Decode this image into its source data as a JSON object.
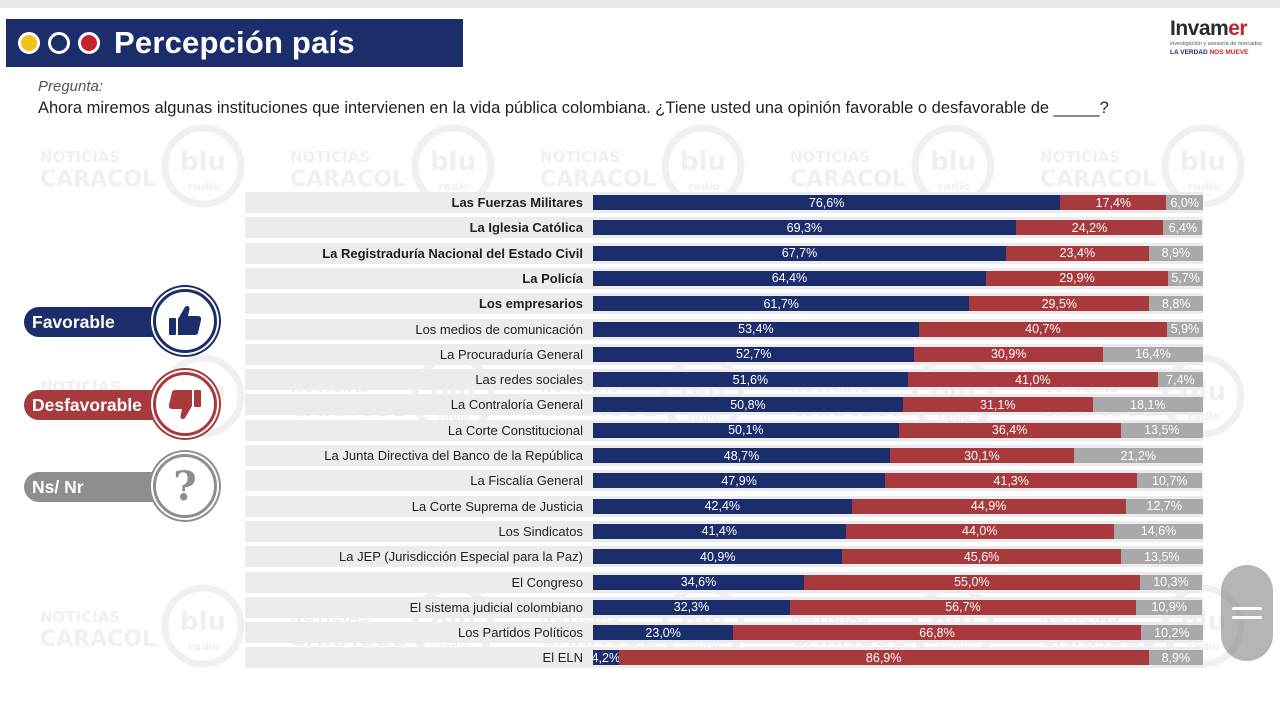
{
  "header": {
    "title": "Percepción país",
    "logo_word_a": "Invam",
    "logo_word_b": "er",
    "logo_sub": "investigación y asesoría de mercados",
    "logo_tag_a": "LA VERDAD ",
    "logo_tag_b": "NOS MUEVE"
  },
  "question": {
    "label": "Pregunta:",
    "text": "Ahora miremos algunas instituciones que intervienen en la vida pública colombiana. ¿Tiene usted una opinión favorable o desfavorable de _____?"
  },
  "watermark": {
    "line1": "NOTICIAS",
    "line2": "CARACOL",
    "blu": "blu",
    "radio": "radio"
  },
  "legend": {
    "favorable": "Favorable",
    "desfavorable": "Desfavorable",
    "nsnr": "Ns/ Nr",
    "nsnr_glyph": "?"
  },
  "colors": {
    "favorable": "#1b2e6b",
    "desfavorable": "#a8393c",
    "nsnr": "#a9a9ab"
  },
  "chart_data": {
    "type": "bar",
    "stacked": true,
    "orientation": "horizontal",
    "title": "Percepción país",
    "categories": [
      "Las Fuerzas Militares",
      "La Iglesia Católica",
      "La Registraduría Nacional del Estado Civil",
      "La Policía",
      "Los empresarios",
      "Los medios de comunicación",
      "La Procuraduría General",
      "Las redes sociales",
      "La Contraloría General",
      "La Corte Constitucional",
      "La Junta Directiva del Banco de la República",
      "La Fiscalía General",
      "La Corte Suprema de Justicia",
      "Los Sindicatos",
      "La JEP (Jurisdicción Especial para la Paz)",
      "El Congreso",
      "El sistema judicial colombiano",
      "Los Partidos Políticos",
      "El ELN"
    ],
    "bold_categories": 5,
    "series": [
      {
        "name": "Favorable",
        "values": [
          76.6,
          69.3,
          67.7,
          64.4,
          61.7,
          53.4,
          52.7,
          51.6,
          50.8,
          50.1,
          48.7,
          47.9,
          42.4,
          41.4,
          40.9,
          34.6,
          32.3,
          23.0,
          4.2
        ],
        "labels": [
          "76,6%",
          "69,3%",
          "67,7%",
          "64,4%",
          "61,7%",
          "53,4%",
          "52,7%",
          "51,6%",
          "50,8%",
          "50,1%",
          "48,7%",
          "47,9%",
          "42,4%",
          "41,4%",
          "40,9%",
          "34,6%",
          "32,3%",
          "23,0%",
          "4,2%"
        ]
      },
      {
        "name": "Desfavorable",
        "values": [
          17.4,
          24.2,
          23.4,
          29.9,
          29.5,
          40.7,
          30.9,
          41.0,
          31.1,
          36.4,
          30.1,
          41.3,
          44.9,
          44.0,
          45.6,
          55.0,
          56.7,
          66.8,
          86.9
        ],
        "labels": [
          "17,4%",
          "24,2%",
          "23,4%",
          "29,9%",
          "29,5%",
          "40,7%",
          "30,9%",
          "41,0%",
          "31,1%",
          "36,4%",
          "30,1%",
          "41,3%",
          "44,9%",
          "44,0%",
          "45,6%",
          "55,0%",
          "56,7%",
          "66,8%",
          "86,9%"
        ]
      },
      {
        "name": "Ns/ Nr",
        "values": [
          6.0,
          6.4,
          8.9,
          5.7,
          8.8,
          5.9,
          16.4,
          7.4,
          18.1,
          13.5,
          21.2,
          10.7,
          12.7,
          14.6,
          13.5,
          10.3,
          10.9,
          10.2,
          8.9
        ],
        "labels": [
          "6,0%",
          "6,4%",
          "8,9%",
          "5,7%",
          "8,8%",
          "5,9%",
          "16,4%",
          "7,4%",
          "18,1%",
          "13,5%",
          "21,2%",
          "10,7%",
          "12,7%",
          "14,6%",
          "13,5%",
          "10,3%",
          "10,9%",
          "10,2%",
          "8,9%"
        ]
      }
    ],
    "xlim": [
      0,
      100
    ],
    "legend": "left"
  }
}
